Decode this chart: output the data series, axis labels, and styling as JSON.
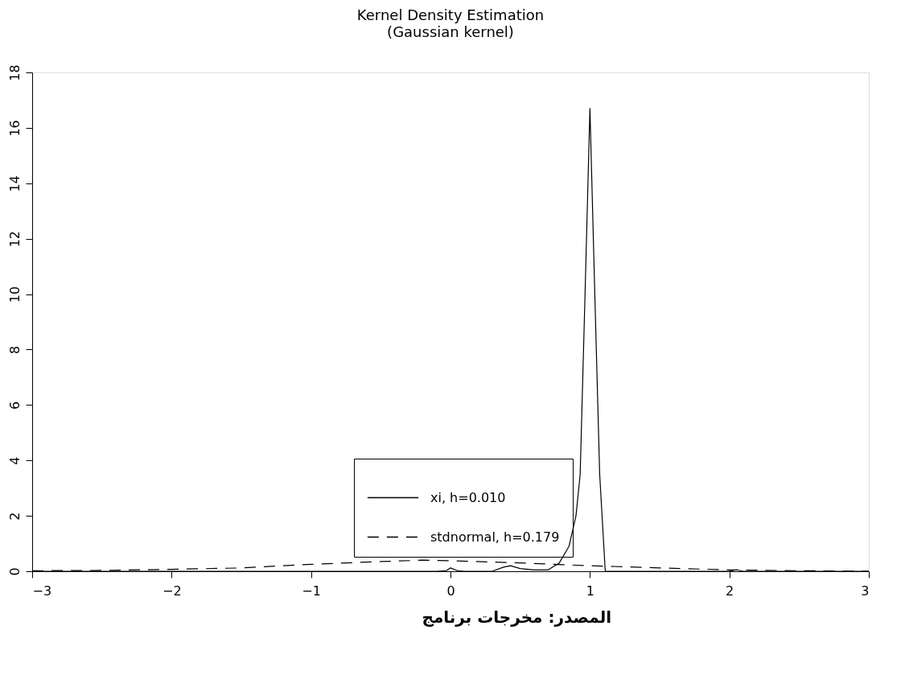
{
  "chart_data": {
    "type": "line",
    "title": "Kernel Density Estimation",
    "subtitle": "(Gaussian kernel)",
    "xlim": [
      -3,
      3
    ],
    "xticks": [
      -3,
      -2,
      -1,
      0,
      1,
      2,
      3
    ],
    "ylim": [
      0,
      18
    ],
    "yticks": [
      0,
      2,
      4,
      6,
      8,
      10,
      12,
      14,
      16,
      18
    ],
    "grid": false,
    "legend": "bottom right",
    "marker": "none",
    "series": [
      {
        "name": "xi, h=0.010",
        "color": "#000000",
        "line_style": "solid",
        "x": [
          -3,
          -0.1,
          -0.03,
          0,
          0.05,
          0.1,
          0.3,
          0.38,
          0.43,
          0.5,
          0.6,
          0.7,
          0.78,
          0.85,
          0.9,
          0.93,
          0.965,
          1.0,
          1.035,
          1.07,
          1.11,
          1.5,
          2.0,
          2.05,
          2.1,
          3
        ],
        "values": [
          0,
          0,
          0.02,
          0.12,
          0.02,
          0,
          0,
          0.15,
          0.2,
          0.1,
          0.05,
          0.05,
          0.3,
          0.9,
          2,
          3.5,
          10,
          16.7,
          10,
          3.5,
          0,
          0,
          0,
          0.05,
          0,
          0
        ]
      },
      {
        "name": "stdnormal, h=0.179",
        "color": "#000000",
        "line_style": "dashed",
        "x": [
          -3,
          -2.5,
          -2,
          -1.5,
          -1,
          -0.5,
          -0.2,
          0,
          0.5,
          1,
          1.5,
          2,
          2.5,
          3
        ],
        "values": [
          0.02,
          0.03,
          0.07,
          0.12,
          0.25,
          0.35,
          0.4,
          0.38,
          0.3,
          0.2,
          0.12,
          0.05,
          0.02,
          0
        ]
      }
    ],
    "annotations": [
      "المصدر: مخرجات برنامج"
    ]
  }
}
